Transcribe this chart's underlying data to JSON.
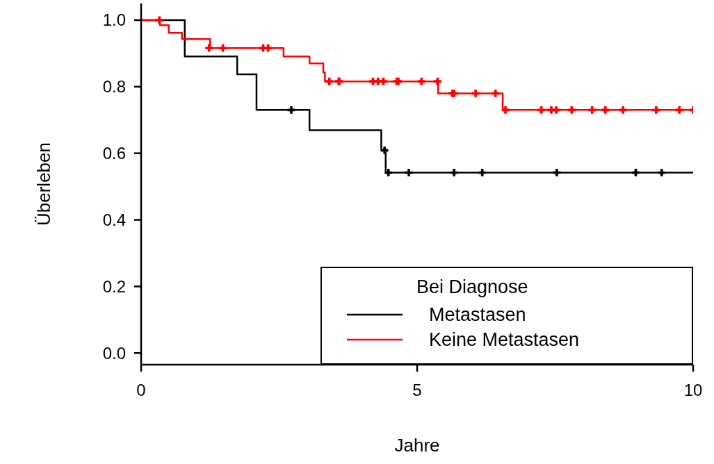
{
  "chart_data": {
    "type": "step",
    "xlabel": "Jahre",
    "ylabel": "Überleben",
    "legend_title": "Bei Diagnose",
    "legend": "bottom right",
    "grid": false,
    "xlim": [
      0,
      10
    ],
    "xticks": [
      0,
      5,
      10
    ],
    "ylim": [
      -0.035,
      1.05
    ],
    "yticks": [
      {
        "value": 0,
        "label": "0.0"
      },
      {
        "value": 0.2,
        "label": "0.2"
      },
      {
        "value": 0.4,
        "label": "0.4"
      },
      {
        "value": 0.6,
        "label": "0.6"
      },
      {
        "value": 0.8,
        "label": "0.8"
      },
      {
        "value": 1,
        "label": "1.0"
      }
    ],
    "series": [
      {
        "name": "Metastasen",
        "color": "#000000",
        "x": [
          0,
          0.79,
          1.74,
          2.09,
          3.05,
          4.35,
          4.43,
          10
        ],
        "values": [
          1,
          0.891,
          0.837,
          0.73,
          0.669,
          0.609,
          0.542,
          0.542
        ]
      },
      {
        "name": "Keine Metastasen",
        "color": "#ff0000",
        "x": [
          0,
          0.34,
          0.5,
          0.74,
          1.25,
          2.58,
          3.05,
          3.3,
          3.33,
          5.38,
          6.55,
          10
        ],
        "values": [
          1,
          0.985,
          0.962,
          0.943,
          0.916,
          0.891,
          0.87,
          0.843,
          0.816,
          0.78,
          0.73,
          0.73
        ]
      },
      {
        "color": "#000000",
        "type": "scatter",
        "marker": "cross",
        "x": [
          2.72,
          4.41,
          4.48,
          4.85,
          5.67,
          6.18,
          7.53,
          8.96,
          9.43
        ],
        "values": [
          0.73,
          0.609,
          0.542,
          0.542,
          0.542,
          0.542,
          0.542,
          0.542,
          0.542
        ]
      },
      {
        "color": "#ff0000",
        "type": "scatter",
        "marker": "cross",
        "x": [
          0.33,
          1.23,
          1.48,
          2.21,
          2.3,
          3.41,
          3.58,
          3.59,
          4.2,
          4.29,
          4.39,
          4.63,
          4.66,
          5.08,
          5.37,
          5.64,
          5.67,
          6.06,
          6.42,
          6.6,
          7.25,
          7.43,
          7.52,
          7.8,
          8.17,
          8.41,
          8.73,
          9.33,
          9.75,
          10
        ],
        "values": [
          1,
          0.916,
          0.916,
          0.916,
          0.916,
          0.816,
          0.816,
          0.816,
          0.816,
          0.816,
          0.816,
          0.816,
          0.816,
          0.816,
          0.816,
          0.78,
          0.78,
          0.78,
          0.78,
          0.73,
          0.73,
          0.73,
          0.73,
          0.73,
          0.73,
          0.73,
          0.73,
          0.73,
          0.73,
          0.73
        ]
      }
    ]
  }
}
